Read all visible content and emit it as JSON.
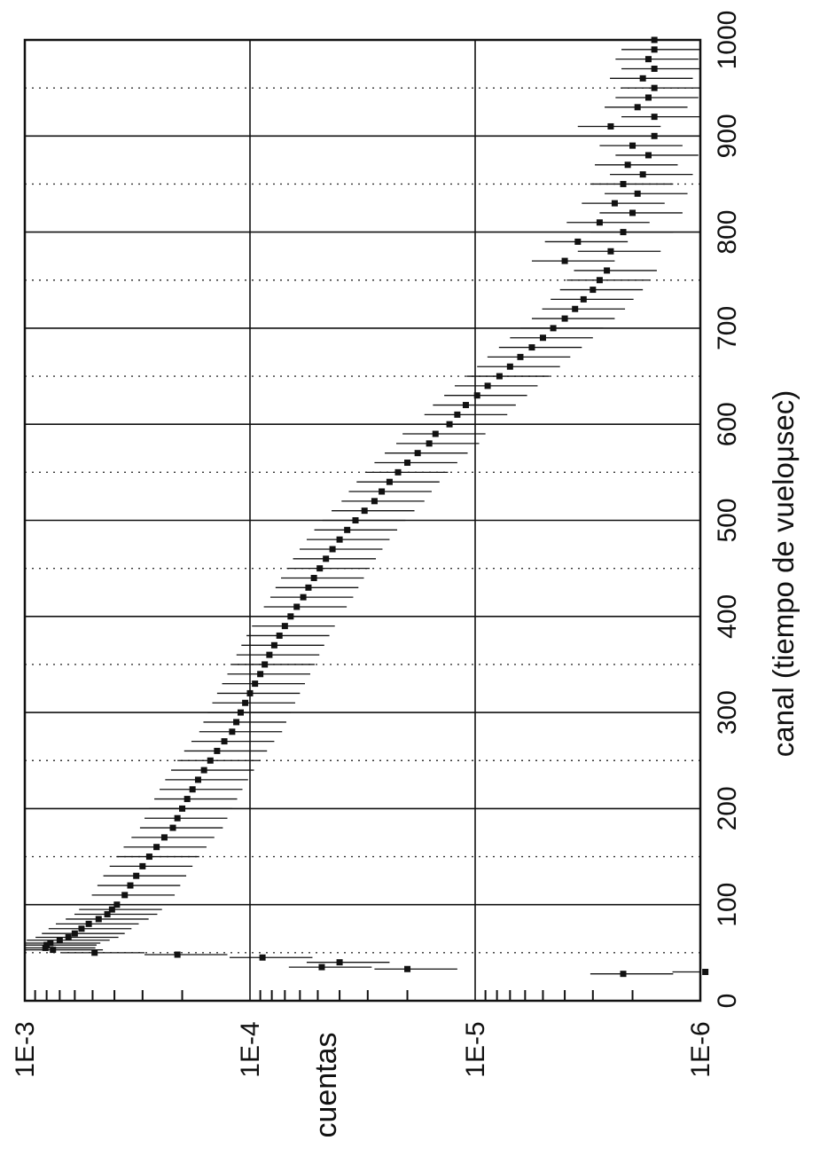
{
  "chart_data": {
    "type": "scatter",
    "orientation": "rotated-90-ccw",
    "title": "",
    "xlabel": "canal (tiempo de vueloμsec)",
    "ylabel": "cuentas",
    "xlim": [
      0,
      1000
    ],
    "ylim": [
      1e-06,
      0.001
    ],
    "yscale": "log",
    "x_ticks": [
      "0",
      "100",
      "200",
      "300",
      "400",
      "500",
      "600",
      "700",
      "800",
      "900",
      "1000"
    ],
    "y_ticks": [
      "1E-6",
      "1E-5",
      "1E-4",
      "1E-3"
    ],
    "grid": "major solid, x minor dotted",
    "error_bars": true,
    "series": [
      {
        "marker": "square",
        "color": "#111111",
        "points": [
          [
            28,
            2.2e-06
          ],
          [
            30,
            9.5e-07
          ],
          [
            33,
            2e-05
          ],
          [
            35,
            4.8e-05
          ],
          [
            40,
            4e-05
          ],
          [
            45,
            8.8e-05
          ],
          [
            48,
            0.00021
          ],
          [
            50,
            0.00049
          ],
          [
            53,
            0.00075
          ],
          [
            55,
            0.00081
          ],
          [
            58,
            0.0008
          ],
          [
            60,
            0.00077
          ],
          [
            63,
            0.0007
          ],
          [
            66,
            0.00064
          ],
          [
            70,
            0.0006
          ],
          [
            75,
            0.00056
          ],
          [
            80,
            0.00052
          ],
          [
            85,
            0.00047
          ],
          [
            90,
            0.00043
          ],
          [
            95,
            0.00041
          ],
          [
            100,
            0.00039
          ],
          [
            110,
            0.00036
          ],
          [
            120,
            0.00034
          ],
          [
            130,
            0.00032
          ],
          [
            140,
            0.0003
          ],
          [
            150,
            0.00028
          ],
          [
            160,
            0.00026
          ],
          [
            170,
            0.00024
          ],
          [
            180,
            0.00022
          ],
          [
            190,
            0.00021
          ],
          [
            200,
            0.0002
          ],
          [
            210,
            0.00019
          ],
          [
            220,
            0.00018
          ],
          [
            230,
            0.00017
          ],
          [
            240,
            0.00016
          ],
          [
            250,
            0.00015
          ],
          [
            260,
            0.00014
          ],
          [
            270,
            0.00013
          ],
          [
            280,
            0.00012
          ],
          [
            290,
            0.000115
          ],
          [
            300,
            0.00011
          ],
          [
            310,
            0.000105
          ],
          [
            320,
            0.0001
          ],
          [
            330,
            9.5e-05
          ],
          [
            340,
            9e-05
          ],
          [
            350,
            8.6e-05
          ],
          [
            360,
            8.2e-05
          ],
          [
            370,
            7.8e-05
          ],
          [
            380,
            7.4e-05
          ],
          [
            390,
            7e-05
          ],
          [
            400,
            6.6e-05
          ],
          [
            410,
            6.2e-05
          ],
          [
            420,
            5.8e-05
          ],
          [
            430,
            5.5e-05
          ],
          [
            440,
            5.2e-05
          ],
          [
            450,
            4.9e-05
          ],
          [
            460,
            4.6e-05
          ],
          [
            470,
            4.3e-05
          ],
          [
            480,
            4e-05
          ],
          [
            490,
            3.7e-05
          ],
          [
            500,
            3.4e-05
          ],
          [
            510,
            3.1e-05
          ],
          [
            520,
            2.8e-05
          ],
          [
            530,
            2.6e-05
          ],
          [
            540,
            2.4e-05
          ],
          [
            550,
            2.2e-05
          ],
          [
            560,
            2e-05
          ],
          [
            570,
            1.8e-05
          ],
          [
            580,
            1.6e-05
          ],
          [
            590,
            1.5e-05
          ],
          [
            600,
            1.3e-05
          ],
          [
            610,
            1.2e-05
          ],
          [
            620,
            1.1e-05
          ],
          [
            630,
            9.8e-06
          ],
          [
            640,
            8.8e-06
          ],
          [
            650,
            7.8e-06
          ],
          [
            660,
            7e-06
          ],
          [
            670,
            6.3e-06
          ],
          [
            680,
            5.6e-06
          ],
          [
            690,
            5e-06
          ],
          [
            700,
            4.5e-06
          ],
          [
            710,
            4e-06
          ],
          [
            720,
            3.6e-06
          ],
          [
            730,
            3.3e-06
          ],
          [
            740,
            3e-06
          ],
          [
            750,
            2.8e-06
          ],
          [
            760,
            2.6e-06
          ],
          [
            770,
            4e-06
          ],
          [
            780,
            2.5e-06
          ],
          [
            790,
            3.5e-06
          ],
          [
            800,
            2.2e-06
          ],
          [
            810,
            2.8e-06
          ],
          [
            820,
            2e-06
          ],
          [
            830,
            2.4e-06
          ],
          [
            840,
            1.9e-06
          ],
          [
            850,
            2.2e-06
          ],
          [
            860,
            1.8e-06
          ],
          [
            870,
            2.1e-06
          ],
          [
            880,
            1.7e-06
          ],
          [
            890,
            2e-06
          ],
          [
            900,
            1.6e-06
          ],
          [
            910,
            2.5e-06
          ],
          [
            920,
            1.6e-06
          ],
          [
            930,
            1.9e-06
          ],
          [
            940,
            1.7e-06
          ],
          [
            950,
            1.6e-06
          ],
          [
            960,
            1.8e-06
          ],
          [
            970,
            1.6e-06
          ],
          [
            980,
            1.7e-06
          ],
          [
            990,
            1.6e-06
          ],
          [
            1000,
            1.6e-06
          ]
        ]
      }
    ]
  }
}
